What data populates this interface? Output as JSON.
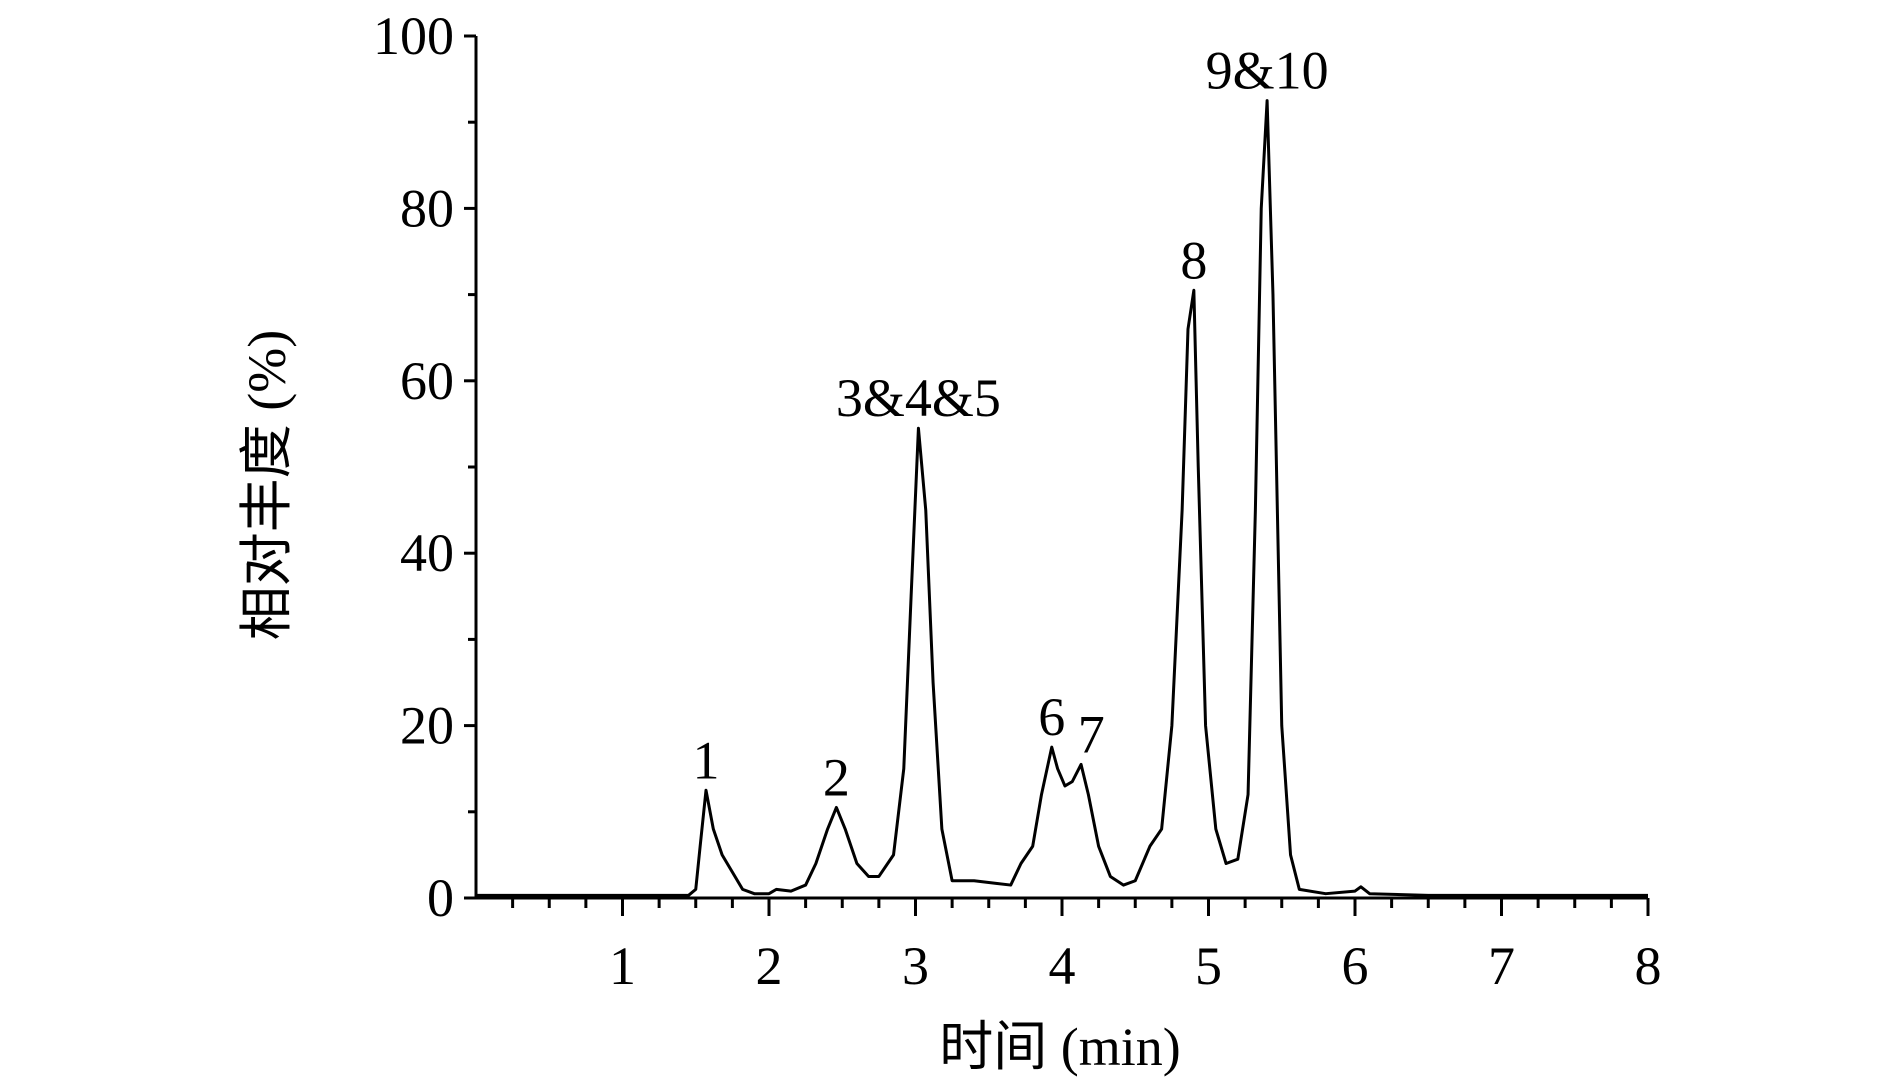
{
  "chart_data": {
    "type": "line",
    "xlabel": "时间 (min)",
    "ylabel": "相对丰度 (%)",
    "series": [
      {
        "color": "#000000",
        "x": [
          0,
          1.45,
          1.5,
          1.53,
          1.57,
          1.62,
          1.68,
          1.75,
          1.82,
          1.9,
          2.0,
          2.05,
          2.15,
          2.25,
          2.32,
          2.4,
          2.46,
          2.52,
          2.6,
          2.68,
          2.75,
          2.85,
          2.92,
          2.97,
          3.02,
          3.07,
          3.12,
          3.18,
          3.25,
          3.4,
          3.55,
          3.65,
          3.72,
          3.8,
          3.86,
          3.93,
          3.97,
          4.02,
          4.07,
          4.13,
          4.18,
          4.25,
          4.33,
          4.42,
          4.5,
          4.6,
          4.68,
          4.75,
          4.82,
          4.86,
          4.9,
          4.93,
          4.98,
          5.05,
          5.12,
          5.2,
          5.27,
          5.32,
          5.36,
          5.4,
          5.44,
          5.5,
          5.56,
          5.62,
          5.8,
          6.0,
          6.04,
          6.1,
          6.5,
          8
        ],
        "values": [
          0.3,
          0.3,
          1,
          6,
          12.5,
          8,
          5,
          3,
          1,
          0.5,
          0.5,
          1,
          0.8,
          1.5,
          4,
          8,
          10.5,
          8,
          4,
          2.5,
          2.5,
          5,
          15,
          35,
          54.5,
          45,
          25,
          8,
          2,
          2,
          1.7,
          1.5,
          4,
          6,
          12,
          17.5,
          15,
          13,
          13.5,
          15.5,
          12,
          6,
          2.5,
          1.5,
          2,
          6,
          8,
          20,
          45,
          66,
          70.5,
          50,
          20,
          8,
          4,
          4.5,
          12,
          45,
          80,
          92.5,
          70,
          20,
          5,
          1,
          0.5,
          0.8,
          1.3,
          0.5,
          0.3,
          0.3
        ]
      }
    ],
    "annotations": [
      {
        "text": "1",
        "x": 1.57,
        "y": 12.5
      },
      {
        "text": "2",
        "x": 2.46,
        "y": 10.5
      },
      {
        "text": "3&4&5",
        "x": 3.02,
        "y": 54.5
      },
      {
        "text": "6",
        "x": 3.93,
        "y": 17.5
      },
      {
        "text": "7",
        "x": 4.2,
        "y": 15.5
      },
      {
        "text": "8",
        "x": 4.9,
        "y": 70.5
      },
      {
        "text": "9&10",
        "x": 5.4,
        "y": 92.5
      }
    ],
    "xlim": [
      0,
      8
    ],
    "xticks": [
      1,
      2,
      3,
      4,
      5,
      6,
      7,
      8
    ],
    "xminorticks": [
      0.25,
      0.5,
      0.75,
      1.25,
      1.5,
      1.75,
      2.25,
      2.5,
      2.75,
      3.25,
      3.5,
      3.75,
      4.25,
      4.5,
      4.75,
      5.25,
      5.5,
      5.75,
      6.25,
      6.5,
      6.75,
      7.25,
      7.5,
      7.75
    ],
    "ylim": [
      0,
      100
    ],
    "yticks": [
      0,
      20,
      40,
      60,
      80,
      100
    ],
    "yminorticks": [
      10,
      30,
      50,
      70,
      90
    ]
  }
}
